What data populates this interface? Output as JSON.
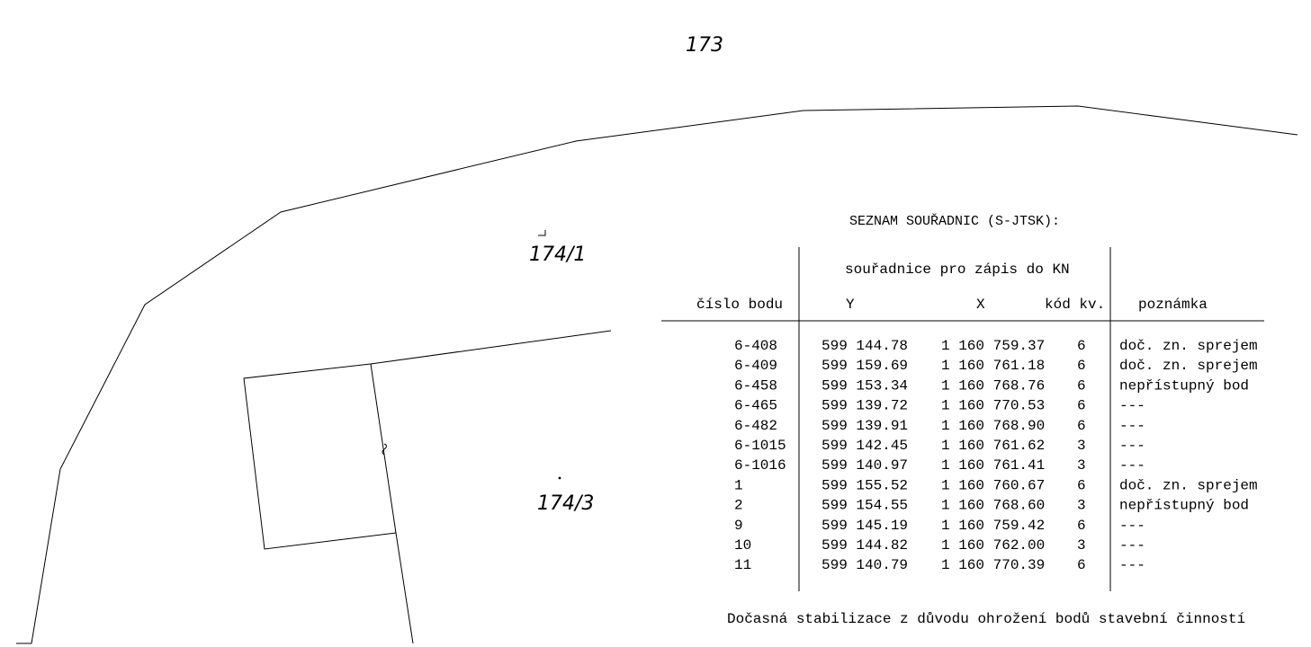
{
  "parcels": {
    "p173": "173",
    "p174_1": "174/1",
    "p174_3": "174/3"
  },
  "table": {
    "title": "SEZNAM SOUŘADNIC (S-JTSK):",
    "group_header": "souřadnice pro zápis do KN",
    "columns": {
      "cislo": "číslo bodu",
      "y": "Y",
      "x": "X",
      "kod": "kód kv.",
      "poznamka": "poznámka"
    },
    "rows": [
      {
        "cislo": "6-408",
        "y": "599 144.78",
        "x": "1 160 759.37",
        "kod": "6",
        "poznamka": "doč. zn. sprejem"
      },
      {
        "cislo": "6-409",
        "y": "599 159.69",
        "x": "1 160 761.18",
        "kod": "6",
        "poznamka": "doč. zn. sprejem"
      },
      {
        "cislo": "6-458",
        "y": "599 153.34",
        "x": "1 160 768.76",
        "kod": "6",
        "poznamka": "nepřístupný bod"
      },
      {
        "cislo": "6-465",
        "y": "599 139.72",
        "x": "1 160 770.53",
        "kod": "6",
        "poznamka": "---"
      },
      {
        "cislo": "6-482",
        "y": "599 139.91",
        "x": "1 160 768.90",
        "kod": "6",
        "poznamka": "---"
      },
      {
        "cislo": "6-1015",
        "y": "599 142.45",
        "x": "1 160 761.62",
        "kod": "3",
        "poznamka": "---"
      },
      {
        "cislo": "6-1016",
        "y": "599 140.97",
        "x": "1 160 761.41",
        "kod": "3",
        "poznamka": "---"
      },
      {
        "cislo": "1",
        "y": "599 155.52",
        "x": "1 160 760.67",
        "kod": "6",
        "poznamka": "doč. zn. sprejem"
      },
      {
        "cislo": "2",
        "y": "599 154.55",
        "x": "1 160 768.60",
        "kod": "3",
        "poznamka": "nepřístupný bod"
      },
      {
        "cislo": "9",
        "y": "599 145.19",
        "x": "1 160 759.42",
        "kod": "6",
        "poznamka": "---"
      },
      {
        "cislo": "10",
        "y": "599 144.82",
        "x": "1 160 762.00",
        "kod": "3",
        "poznamka": "---"
      },
      {
        "cislo": "11",
        "y": "599 140.79",
        "x": "1 160 770.39",
        "kod": "6",
        "poznamka": "---"
      }
    ],
    "footnote": "Dočasná stabilizace z důvodu ohrožení bodů stavební činností"
  }
}
